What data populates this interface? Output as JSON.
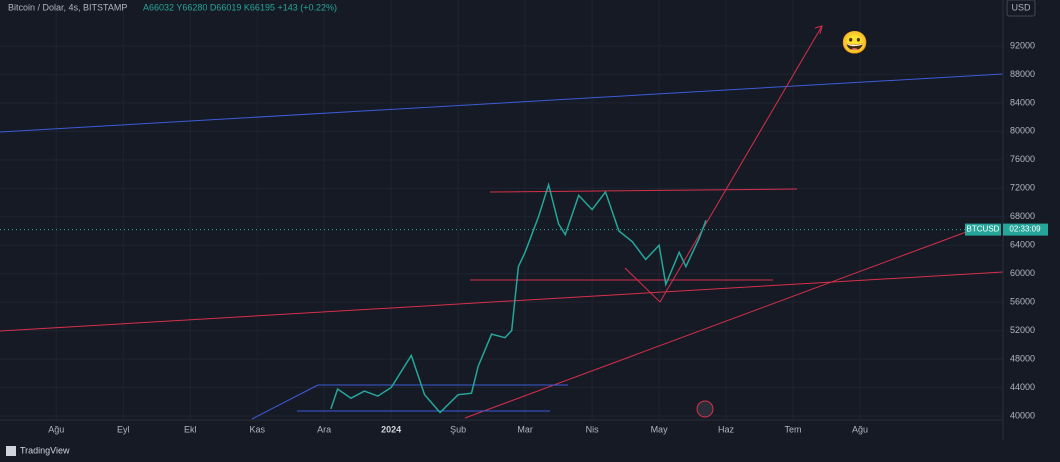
{
  "header": {
    "symbol": "Bitcoin / Dolar, 4s, BITSTAMP",
    "ohlc": "A66032  Y66280  D66019  K66195  +143 (+0.22%)",
    "currency": "USD",
    "brand": "TradingView"
  },
  "chart_data": {
    "type": "line",
    "x": [
      4.1,
      4.2,
      4.4,
      4.6,
      4.8,
      5.0,
      5.3,
      5.5,
      5.73,
      6.0,
      6.2,
      6.3,
      6.5,
      6.7,
      6.8,
      6.9,
      7.0,
      7.2,
      7.35,
      7.5,
      7.6,
      7.8,
      8.0,
      8.2,
      8.4,
      8.6,
      8.8,
      9.0,
      9.1,
      9.3,
      9.4,
      9.6,
      9.7
    ],
    "series": [
      {
        "name": "BTCUSD",
        "color": "#26a69a",
        "values": [
          41000,
          43800,
          42500,
          43500,
          42800,
          44000,
          48500,
          43000,
          40500,
          43000,
          43200,
          47000,
          51500,
          51000,
          52000,
          61000,
          63000,
          68000,
          72500,
          67000,
          65500,
          71000,
          69000,
          71500,
          66000,
          64500,
          62000,
          64000,
          58500,
          63000,
          61000,
          65000,
          67500
        ]
      }
    ],
    "last_price": 66195,
    "price_tag": "BTCUSD",
    "countdown": "02:33:09",
    "annotation": "😀",
    "xlim": [
      -0.84,
      14.09
    ],
    "xticks": [
      {
        "value": 0,
        "label": "Ağu"
      },
      {
        "value": 1,
        "label": "Eyl"
      },
      {
        "value": 2,
        "label": "Ekl"
      },
      {
        "value": 3,
        "label": "Kas"
      },
      {
        "value": 4,
        "label": "Ara"
      },
      {
        "value": 5,
        "label": "2024"
      },
      {
        "value": 6,
        "label": "Şub"
      },
      {
        "value": 7,
        "label": "Mar"
      },
      {
        "value": 8,
        "label": "Nis"
      },
      {
        "value": 9,
        "label": "May"
      },
      {
        "value": 10,
        "label": "Haz"
      },
      {
        "value": 11,
        "label": "Tem"
      },
      {
        "value": 12,
        "label": "Ağu"
      }
    ],
    "ylim": [
      39440,
      98460
    ],
    "yticks": [
      40000,
      44000,
      48000,
      52000,
      56000,
      60000,
      64000,
      68000,
      72000,
      76000,
      80000,
      84000,
      88000,
      92000
    ],
    "grid": true
  }
}
